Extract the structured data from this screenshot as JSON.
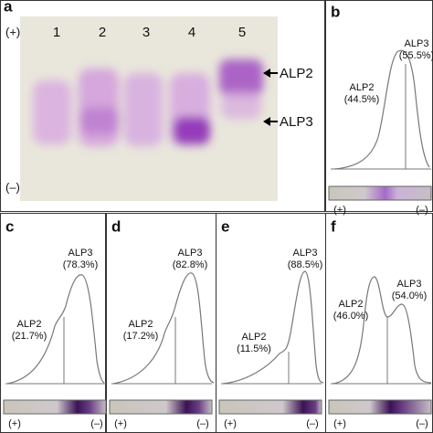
{
  "panel_a": {
    "letter": "a",
    "lanes": [
      "1",
      "2",
      "3",
      "4",
      "5"
    ],
    "markers": [
      "ALP2",
      "ALP3"
    ],
    "plus": "(+)",
    "minus": "(–)"
  },
  "panels": [
    {
      "letter": "b",
      "alp2": "ALP2",
      "alp2_pct": "(44.5%)",
      "alp3": "ALP3",
      "alp3_pct": "(55.5%)",
      "plus": "(+)",
      "minus": "(–)"
    },
    {
      "letter": "c",
      "alp2": "ALP2",
      "alp2_pct": "(21.7%)",
      "alp3": "ALP3",
      "alp3_pct": "(78.3%)",
      "plus": "(+)",
      "minus": "(–)"
    },
    {
      "letter": "d",
      "alp2": "ALP2",
      "alp2_pct": "(17.2%)",
      "alp3": "ALP3",
      "alp3_pct": "(82.8%)",
      "plus": "(+)",
      "minus": "(–)"
    },
    {
      "letter": "e",
      "alp2": "ALP2",
      "alp2_pct": "(11.5%)",
      "alp3": "ALP3",
      "alp3_pct": "(88.5%)",
      "plus": "(+)",
      "minus": "(–)"
    },
    {
      "letter": "f",
      "alp2": "ALP2",
      "alp2_pct": "(46.0%)",
      "alp3": "ALP3",
      "alp3_pct": "(54.0%)",
      "plus": "(+)",
      "minus": "(–)"
    }
  ]
}
